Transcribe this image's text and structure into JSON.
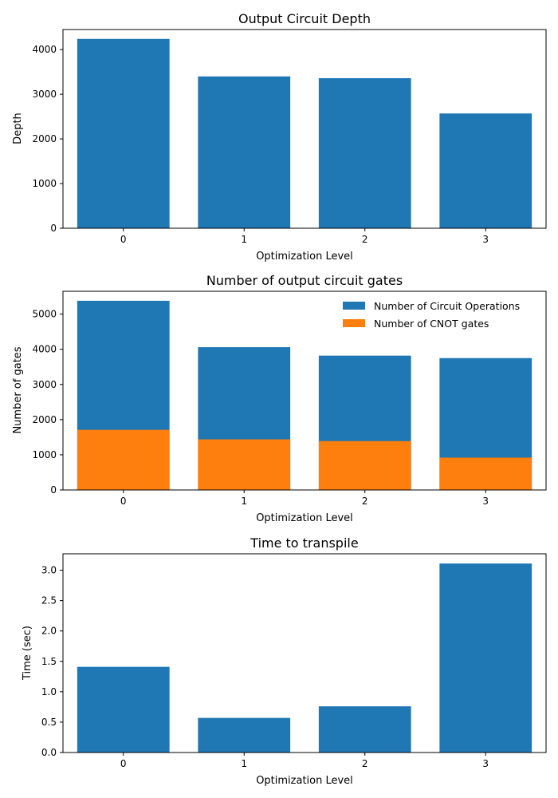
{
  "chart_data": [
    {
      "type": "bar",
      "title": "Output Circuit Depth",
      "xlabel": "Optimization Level",
      "ylabel": "Depth",
      "categories": [
        "0",
        "1",
        "2",
        "3"
      ],
      "series": [
        {
          "name": "Depth",
          "color": "#1f77b4",
          "values": [
            4240,
            3400,
            3360,
            2570
          ]
        }
      ],
      "ylim": [
        0,
        4450
      ],
      "yticks": [
        0,
        1000,
        2000,
        3000,
        4000
      ],
      "ytick_labels": [
        "0",
        "1000",
        "2000",
        "3000",
        "4000"
      ],
      "legend": null,
      "stacked": false
    },
    {
      "type": "bar",
      "title": "Number of output circuit gates",
      "xlabel": "Optimization Level",
      "ylabel": "Number of gates",
      "categories": [
        "0",
        "1",
        "2",
        "3"
      ],
      "series": [
        {
          "name": "Number of Circuit Operations",
          "color": "#1f77b4",
          "values": [
            5380,
            4060,
            3820,
            3750
          ]
        },
        {
          "name": "Number of CNOT gates",
          "color": "#ff7f0e",
          "values": [
            1710,
            1440,
            1390,
            920
          ]
        }
      ],
      "ylim": [
        0,
        5650
      ],
      "yticks": [
        0,
        1000,
        2000,
        3000,
        4000,
        5000
      ],
      "ytick_labels": [
        "0",
        "1000",
        "2000",
        "3000",
        "4000",
        "5000"
      ],
      "legend": "top-right",
      "stacked": false
    },
    {
      "type": "bar",
      "title": "Time to transpile",
      "xlabel": "Optimization Level",
      "ylabel": "Time (sec)",
      "categories": [
        "0",
        "1",
        "2",
        "3"
      ],
      "series": [
        {
          "name": "Time",
          "color": "#1f77b4",
          "values": [
            1.41,
            0.57,
            0.76,
            3.11
          ]
        }
      ],
      "ylim": [
        0,
        3.27
      ],
      "yticks": [
        0,
        0.5,
        1.0,
        1.5,
        2.0,
        2.5,
        3.0
      ],
      "ytick_labels": [
        "0.0",
        "0.5",
        "1.0",
        "1.5",
        "2.0",
        "2.5",
        "3.0"
      ],
      "legend": null,
      "stacked": false
    }
  ]
}
